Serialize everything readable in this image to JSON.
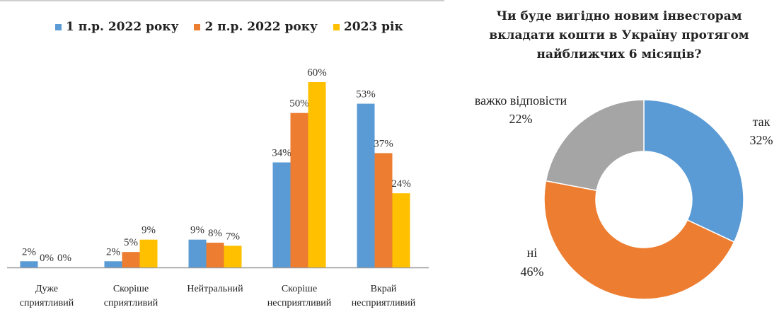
{
  "chart_data": [
    {
      "type": "bar",
      "categories": [
        [
          "Дуже",
          "сприятливий"
        ],
        [
          "Скоріше",
          "сприятливий"
        ],
        [
          "Нейтральний"
        ],
        [
          "Скоріше",
          "несприятливий"
        ],
        [
          "Вкрай",
          "несприятливий"
        ]
      ],
      "series": [
        {
          "name": "1 п.р. 2022 року",
          "color": "#5b9bd5",
          "values": [
            2,
            2,
            9,
            34,
            53
          ],
          "labels": [
            "2%",
            "2%",
            "9%",
            "34%",
            "53%"
          ]
        },
        {
          "name": "2 п.р. 2022 року",
          "color": "#ed7d31",
          "values": [
            0,
            5,
            8,
            50,
            37
          ],
          "labels": [
            "0%",
            "5%",
            "8%",
            "50%",
            "37%"
          ]
        },
        {
          "name": "2023 рік",
          "color": "#ffc000",
          "values": [
            0,
            9,
            7,
            60,
            24
          ],
          "labels": [
            "0%",
            "9%",
            "7%",
            "60%",
            "24%"
          ]
        }
      ],
      "ylim": [
        0,
        60
      ],
      "grid": false,
      "legend": "top"
    },
    {
      "type": "pie",
      "title": "Чи буде вигідно новим інвесторам вкладати кошти в Україну протягом найближчих 6 місяців?",
      "slices": [
        {
          "label": "так",
          "value": 32,
          "pct_label": "32%",
          "color": "#5b9bd5"
        },
        {
          "label": "ні",
          "value": 46,
          "pct_label": "46%",
          "color": "#ed7d31"
        },
        {
          "label": "важко відповісти",
          "value": 22,
          "pct_label": "22%",
          "color": "#a5a5a5"
        }
      ]
    }
  ]
}
